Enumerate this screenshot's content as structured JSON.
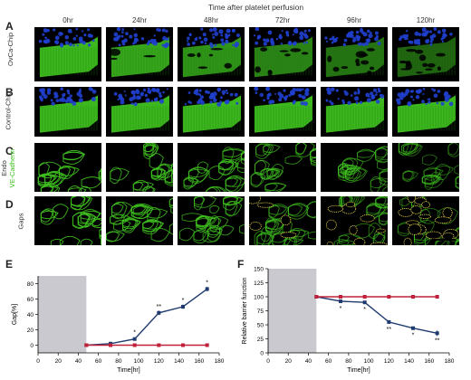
{
  "figure": {
    "top_title": "Time after platelet perfusion",
    "time_labels": [
      "0hr",
      "24hr",
      "48hr",
      "72hr",
      "96hr",
      "120hr"
    ],
    "panels": {
      "A": {
        "letter": "A",
        "row_label": "OvCa-Chip"
      },
      "B": {
        "letter": "B",
        "row_label": "Control-Chip"
      },
      "C": {
        "letter": "C",
        "row_label_line1": "Endo",
        "row_label_line2": "VE-Cadherin"
      },
      "D": {
        "letter": "D",
        "row_label": "Gaps"
      },
      "E": {
        "letter": "E"
      },
      "F": {
        "letter": "F"
      }
    },
    "colors": {
      "green": "#3fc11f",
      "blue": "#2040d0",
      "gap_outline": "#e8d44a",
      "navy_series": "#1f3a6e",
      "red_series": "#c0203a",
      "shade": "#c9c9cf"
    }
  },
  "chart_data": [
    {
      "type": "line",
      "panel": "E",
      "xlabel": "Time[hr]",
      "ylabel": "Gap[%]",
      "xlim": [
        0,
        180
      ],
      "ylim": [
        -10,
        90
      ],
      "xticks": [
        0,
        20,
        40,
        60,
        80,
        100,
        120,
        140,
        160,
        180
      ],
      "yticks": [
        0,
        20,
        40,
        60,
        80
      ],
      "shaded_region": [
        0,
        48
      ],
      "series": [
        {
          "color": "#1f3a6e",
          "x": [
            48,
            72,
            96,
            120,
            144,
            168
          ],
          "y": [
            0,
            2,
            8,
            42,
            50,
            73
          ],
          "err": [
            0,
            0.5,
            1,
            3,
            3,
            3
          ]
        },
        {
          "color": "#c0203a",
          "x": [
            48,
            72,
            96,
            120,
            144,
            168
          ],
          "y": [
            0,
            0,
            0,
            0,
            0,
            0
          ],
          "err": [
            0,
            0,
            0,
            0,
            0,
            0
          ]
        }
      ],
      "annotations": [
        {
          "x": 96,
          "y": 8,
          "text": "*"
        },
        {
          "x": 120,
          "y": 42,
          "text": "**"
        },
        {
          "x": 144,
          "y": 50,
          "text": "*"
        },
        {
          "x": 168,
          "y": 73,
          "text": "*"
        }
      ]
    },
    {
      "type": "line",
      "panel": "F",
      "xlabel": "Time[hr]",
      "ylabel": "Relative barrier function",
      "xlim": [
        0,
        180
      ],
      "ylim": [
        0,
        150
      ],
      "xticks": [
        0,
        20,
        40,
        60,
        80,
        100,
        120,
        140,
        160,
        180
      ],
      "yticks": [
        0,
        25,
        50,
        75,
        100,
        125,
        150
      ],
      "shaded_region": [
        0,
        48
      ],
      "series": [
        {
          "color": "#1f3a6e",
          "x": [
            48,
            72,
            96,
            120,
            144,
            168
          ],
          "y": [
            100,
            92,
            90,
            55,
            44,
            35
          ],
          "err": [
            0,
            2,
            2,
            3,
            3,
            5
          ]
        },
        {
          "color": "#c0203a",
          "x": [
            48,
            72,
            96,
            120,
            144,
            168
          ],
          "y": [
            100,
            100,
            100,
            100,
            100,
            100
          ],
          "err": [
            0,
            0,
            0,
            0,
            0,
            0
          ]
        }
      ],
      "annotations": [
        {
          "x": 72,
          "y": 92,
          "text": "*"
        },
        {
          "x": 96,
          "y": 90,
          "text": "*"
        },
        {
          "x": 120,
          "y": 55,
          "text": "**"
        },
        {
          "x": 144,
          "y": 44,
          "text": "*"
        },
        {
          "x": 168,
          "y": 35,
          "text": "**"
        }
      ]
    }
  ]
}
